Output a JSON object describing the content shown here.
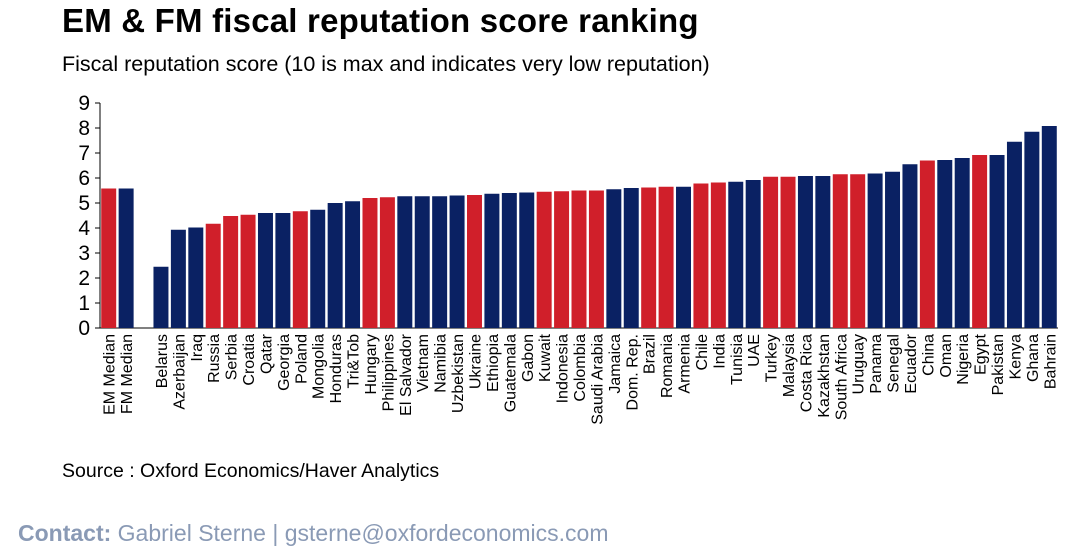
{
  "title": "EM & FM fiscal reputation score ranking",
  "subtitle": "Fiscal reputation score (10 is max and indicates very low reputation)",
  "source": "Source : Oxford Economics/Haver Analytics",
  "contact": {
    "label": "Contact:",
    "text": "Gabriel Sterne | gsterne@oxfordeconomics.com"
  },
  "colors": {
    "em": "#d01f2a",
    "fm": "#0a2163",
    "axis": "#000000"
  },
  "chart_data": {
    "type": "bar",
    "title": "EM & FM fiscal reputation score ranking",
    "ylabel": "Fiscal reputation score (10 is max and indicates very low reputation)",
    "xlabel": "",
    "ylim": [
      0,
      9
    ],
    "yticks": [
      "0",
      "1",
      "2",
      "3",
      "4",
      "5",
      "6",
      "7",
      "8",
      "9"
    ],
    "grid": false,
    "legend": "none",
    "series_colors": "red = EM, navy = FM",
    "categories": [
      "EM Median",
      "FM Median",
      "",
      "Belarus",
      "Azerbaijan",
      "Iraq",
      "Russia",
      "Serbia",
      "Croatia",
      "Qatar",
      "Georgia",
      "Poland",
      "Mongolia",
      "Honduras",
      "Tri&Tob",
      "Hungary",
      "Philippines",
      "El Salvador",
      "Vietnam",
      "Namibia",
      "Uzbekistan",
      "Ukraine",
      "Ethiopia",
      "Guatemala",
      "Gabon",
      "Kuwait",
      "Indonesia",
      "Colombia",
      "Saudi Arabia",
      "Jamaica",
      "Dom. Rep.",
      "Brazil",
      "Romania",
      "Armenia",
      "Chile",
      "India",
      "Tunisia",
      "UAE",
      "Turkey",
      "Malaysia",
      "Costa Rica",
      "Kazakhstan",
      "South Africa",
      "Uruguay",
      "Panama",
      "Senegal",
      "Ecuador",
      "China",
      "Oman",
      "Nigeria",
      "Egypt",
      "Pakistan",
      "Kenya",
      "Ghana",
      "Bahrain"
    ],
    "values": [
      5.58,
      5.58,
      null,
      2.45,
      3.93,
      4.02,
      4.17,
      4.48,
      4.53,
      4.6,
      4.6,
      4.67,
      4.73,
      5.0,
      5.07,
      5.2,
      5.23,
      5.27,
      5.27,
      5.27,
      5.3,
      5.32,
      5.37,
      5.4,
      5.42,
      5.45,
      5.47,
      5.5,
      5.5,
      5.55,
      5.6,
      5.62,
      5.65,
      5.65,
      5.78,
      5.82,
      5.85,
      5.92,
      6.05,
      6.05,
      6.08,
      6.08,
      6.15,
      6.15,
      6.18,
      6.25,
      6.55,
      6.7,
      6.72,
      6.8,
      6.92,
      6.92,
      7.45,
      7.85,
      8.08
    ],
    "groups": [
      "EM",
      "FM",
      "",
      "FM",
      "FM",
      "FM",
      "EM",
      "EM",
      "EM",
      "FM",
      "FM",
      "EM",
      "FM",
      "FM",
      "FM",
      "EM",
      "EM",
      "FM",
      "FM",
      "FM",
      "FM",
      "EM",
      "FM",
      "FM",
      "FM",
      "EM",
      "EM",
      "EM",
      "EM",
      "FM",
      "FM",
      "EM",
      "EM",
      "FM",
      "EM",
      "EM",
      "FM",
      "FM",
      "EM",
      "EM",
      "FM",
      "FM",
      "EM",
      "EM",
      "FM",
      "FM",
      "FM",
      "EM",
      "FM",
      "FM",
      "EM",
      "FM",
      "FM",
      "FM",
      "FM"
    ]
  }
}
